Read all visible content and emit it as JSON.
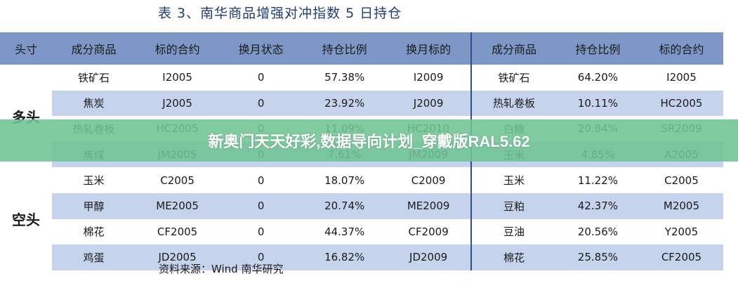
{
  "title": "表 3、南华商品增强对冲指数 5 日持仓",
  "headers": [
    "头寸",
    "成分商品",
    "标的合约",
    "换月状态",
    "持仓比例",
    "换月标的",
    "成分商品",
    "持仓比例",
    "标的合约"
  ],
  "groups": {
    "long": "多头",
    "short": "空头"
  },
  "rows": [
    [
      "铁矿石",
      "I2005",
      "0",
      "57.38%",
      "I2009",
      "铁矿石",
      "64.20%",
      "I2005"
    ],
    [
      "焦炭",
      "J2005",
      "0",
      "23.92%",
      "J2009",
      "热轧卷板",
      "10.11%",
      "HC2005"
    ],
    [
      "热轧卷板",
      "HC2005",
      "0",
      "11.09%",
      "HC2010",
      "白糖",
      "20.84%",
      "SR2009"
    ],
    [
      "焦煤",
      "JM2005",
      "0",
      "7.61%",
      "JM2009",
      "玉米",
      "4.85%",
      "A2005"
    ],
    [
      "玉米",
      "C2005",
      "0",
      "18.07%",
      "C2009",
      "玉米",
      "11.22%",
      "C2005"
    ],
    [
      "甲醇",
      "ME2005",
      "0",
      "20.74%",
      "ME2009",
      "豆粕",
      "42.37%",
      "M2005"
    ],
    [
      "棉花",
      "CF2005",
      "0",
      "44.37%",
      "CF2009",
      "豆油",
      "20.56%",
      "Y2005"
    ],
    [
      "鸡蛋",
      "JD2005",
      "0",
      "16.82%",
      "JD2009",
      "棉花",
      "25.85%",
      "CF2005"
    ]
  ],
  "source": "资料来源：Wind 南华研究",
  "banner": "新奥门天天好彩,数据导向计划_穿戴版RAL5.62",
  "colors": {
    "header_bg": "#7d98c6",
    "alt_row": "#c5d4ec",
    "title": "#1f3d7a",
    "banner": "#70c494"
  }
}
